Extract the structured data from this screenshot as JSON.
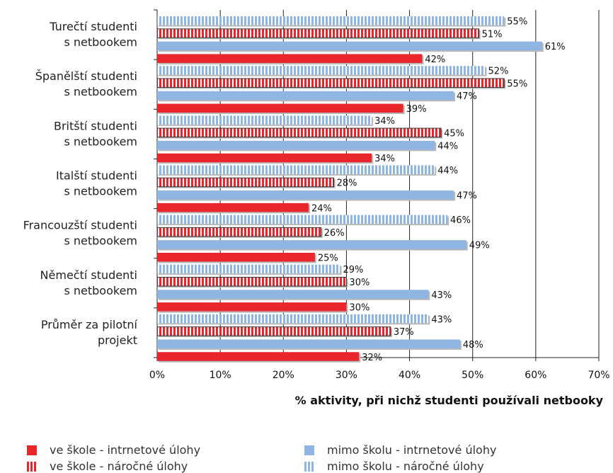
{
  "chart_data": {
    "type": "bar",
    "orientation": "horizontal",
    "categories": [
      [
        "Turečtí studenti",
        "s netbookem"
      ],
      [
        "Španělští studenti",
        "s netbookem"
      ],
      [
        "Britští studenti",
        "s netbookem"
      ],
      [
        "Italští studenti",
        "s netbookem"
      ],
      [
        "Francouzští studenti",
        "s netbookem"
      ],
      [
        "Němečtí studenti",
        "s netbookem"
      ],
      [
        "Průměr za pilotní",
        "projekt"
      ]
    ],
    "series": [
      {
        "name": "mimo školu - náročné úlohy",
        "color": "#8fb6e3",
        "pattern": "striped",
        "values": [
          55,
          52,
          34,
          44,
          46,
          29,
          43
        ]
      },
      {
        "name": "ve škole - náročné úlohy",
        "color": "#e8262c",
        "pattern": "striped",
        "values": [
          51,
          55,
          45,
          28,
          26,
          30,
          37
        ]
      },
      {
        "name": "mimo školu - intrnetové úlohy",
        "color": "#8fb6e3",
        "pattern": "solid",
        "values": [
          61,
          47,
          44,
          47,
          49,
          43,
          48
        ]
      },
      {
        "name": "ve škole - intrnetové úlohy",
        "color": "#e8262c",
        "pattern": "solid",
        "values": [
          42,
          39,
          34,
          24,
          25,
          30,
          32
        ]
      }
    ],
    "xlabel": "% aktivity, při nichž studenti používali netbooky",
    "xlim": [
      0,
      70
    ],
    "xticks": [
      "0%",
      "10%",
      "20%",
      "30%",
      "40%",
      "50%",
      "60%",
      "70%"
    ],
    "grid": true,
    "value_suffix": "%",
    "legend_position": "bottom"
  },
  "legend": {
    "items": [
      {
        "label": "ve škole - intrnetové úlohy",
        "color": "#e8262c",
        "pattern": "solid"
      },
      {
        "label": "mimo školu - intrnetové úlohy",
        "color": "#8fb6e3",
        "pattern": "solid"
      },
      {
        "label": "ve škole - náročné úlohy",
        "color": "#e8262c",
        "pattern": "striped"
      },
      {
        "label": "mimo školu - náročné úlohy",
        "color": "#8fb6e3",
        "pattern": "striped"
      }
    ]
  }
}
